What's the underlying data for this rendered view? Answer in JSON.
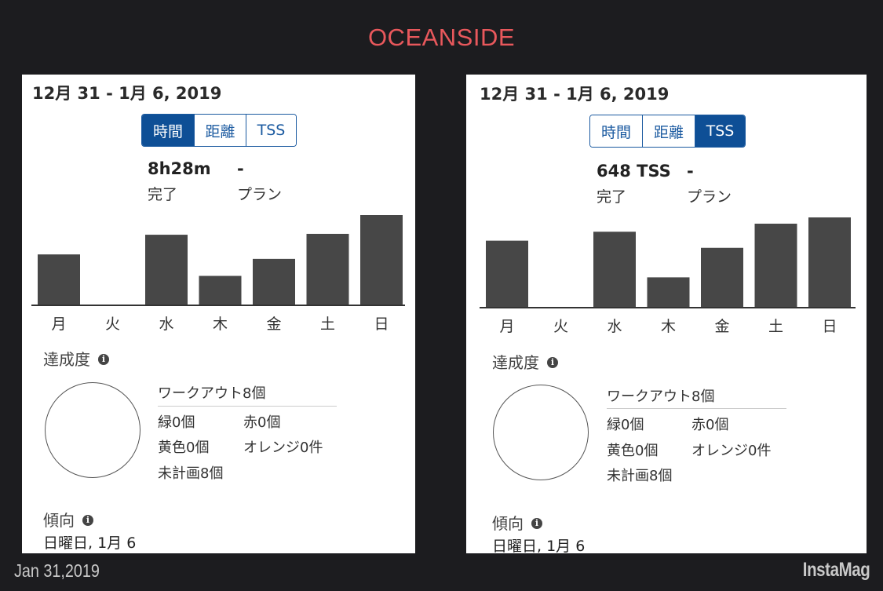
{
  "title": {
    "text": "OCEANSIDE",
    "color": "#e8585c"
  },
  "panels": [
    {
      "date_range": "12月 31 - 1月 6, 2019",
      "tabs": [
        {
          "label": "時間",
          "active": true
        },
        {
          "label": "距離",
          "active": false
        },
        {
          "label": "TSS",
          "active": false
        }
      ],
      "completed_value": "8h28m",
      "completed_label": "完了",
      "plan_value": "-",
      "plan_label": "プラン",
      "achievement": {
        "label": "達成度",
        "workouts_header": "ワークアウト8個",
        "green": "緑0個",
        "red": "赤0個",
        "yellow": "黄色0個",
        "orange": "オレンジ0件",
        "unplanned": "未計画8個"
      },
      "trend": {
        "label": "傾向",
        "date": "日曜日, 1月 6"
      },
      "chart_data": {
        "type": "bar",
        "categories": [
          "月",
          "火",
          "水",
          "木",
          "金",
          "土",
          "日"
        ],
        "values": [
          0.56,
          0,
          0.78,
          0.32,
          0.51,
          0.79,
          1.0
        ],
        "ylim": [
          0,
          1.0
        ]
      }
    },
    {
      "date_range": "12月 31 - 1月 6, 2019",
      "tabs": [
        {
          "label": "時間",
          "active": false
        },
        {
          "label": "距離",
          "active": false
        },
        {
          "label": "TSS",
          "active": true
        }
      ],
      "completed_value": "648 TSS",
      "completed_label": "完了",
      "plan_value": "-",
      "plan_label": "プラン",
      "achievement": {
        "label": "達成度",
        "workouts_header": "ワークアウト8個",
        "green": "緑0個",
        "red": "赤0個",
        "yellow": "黄色0個",
        "orange": "オレンジ0件",
        "unplanned": "未計画8個"
      },
      "trend": {
        "label": "傾向",
        "date": "日曜日, 1月 6"
      },
      "chart_data": {
        "type": "bar",
        "categories": [
          "月",
          "火",
          "水",
          "木",
          "金",
          "土",
          "日"
        ],
        "values": [
          0.74,
          0,
          0.84,
          0.33,
          0.66,
          0.93,
          1.0
        ],
        "ylim": [
          0,
          1.0
        ]
      }
    }
  ],
  "footer": {
    "date": "Jan 31,2019",
    "watermark": "InstaMag"
  },
  "colors": {
    "background": "#1c1c1f",
    "bar": "#474747",
    "tab_active": "#0e4f96"
  }
}
